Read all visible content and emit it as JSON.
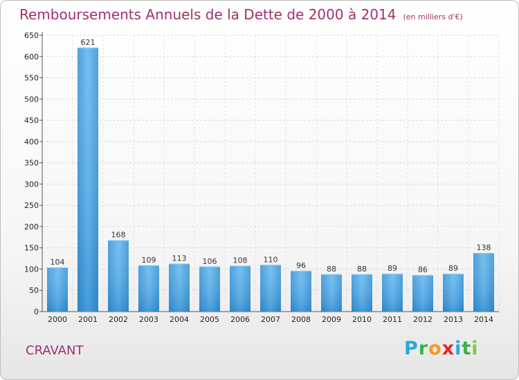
{
  "page": {
    "title": "Remboursements Annuels de la Dette de 2000 à 2014",
    "unit_note": "(en milliers d'€)",
    "commune": "CRAVANT",
    "logo": [
      "P",
      "r",
      "o",
      "x",
      "i",
      "t",
      "i"
    ],
    "logo_colors": [
      "#2aa6df",
      "#3bb04a",
      "#f29a1a",
      "#e2262b",
      "#2aa6df",
      "#3bb04a",
      "#8bc63e"
    ]
  },
  "chart_data": {
    "type": "bar",
    "categories": [
      "2000",
      "2001",
      "2002",
      "2003",
      "2004",
      "2005",
      "2006",
      "2007",
      "2008",
      "2009",
      "2010",
      "2011",
      "2012",
      "2013",
      "2014"
    ],
    "values": [
      104,
      621,
      168,
      109,
      113,
      106,
      108,
      110,
      96,
      88,
      88,
      89,
      86,
      89,
      138
    ],
    "title": "Remboursements Annuels de la Dette de 2000 à 2014",
    "ylim": [
      0,
      650
    ],
    "yticks": [
      0,
      50,
      100,
      150,
      200,
      250,
      300,
      350,
      400,
      450,
      500,
      550,
      600,
      650
    ],
    "grid": true,
    "bar_color": "#3d9ee0"
  }
}
